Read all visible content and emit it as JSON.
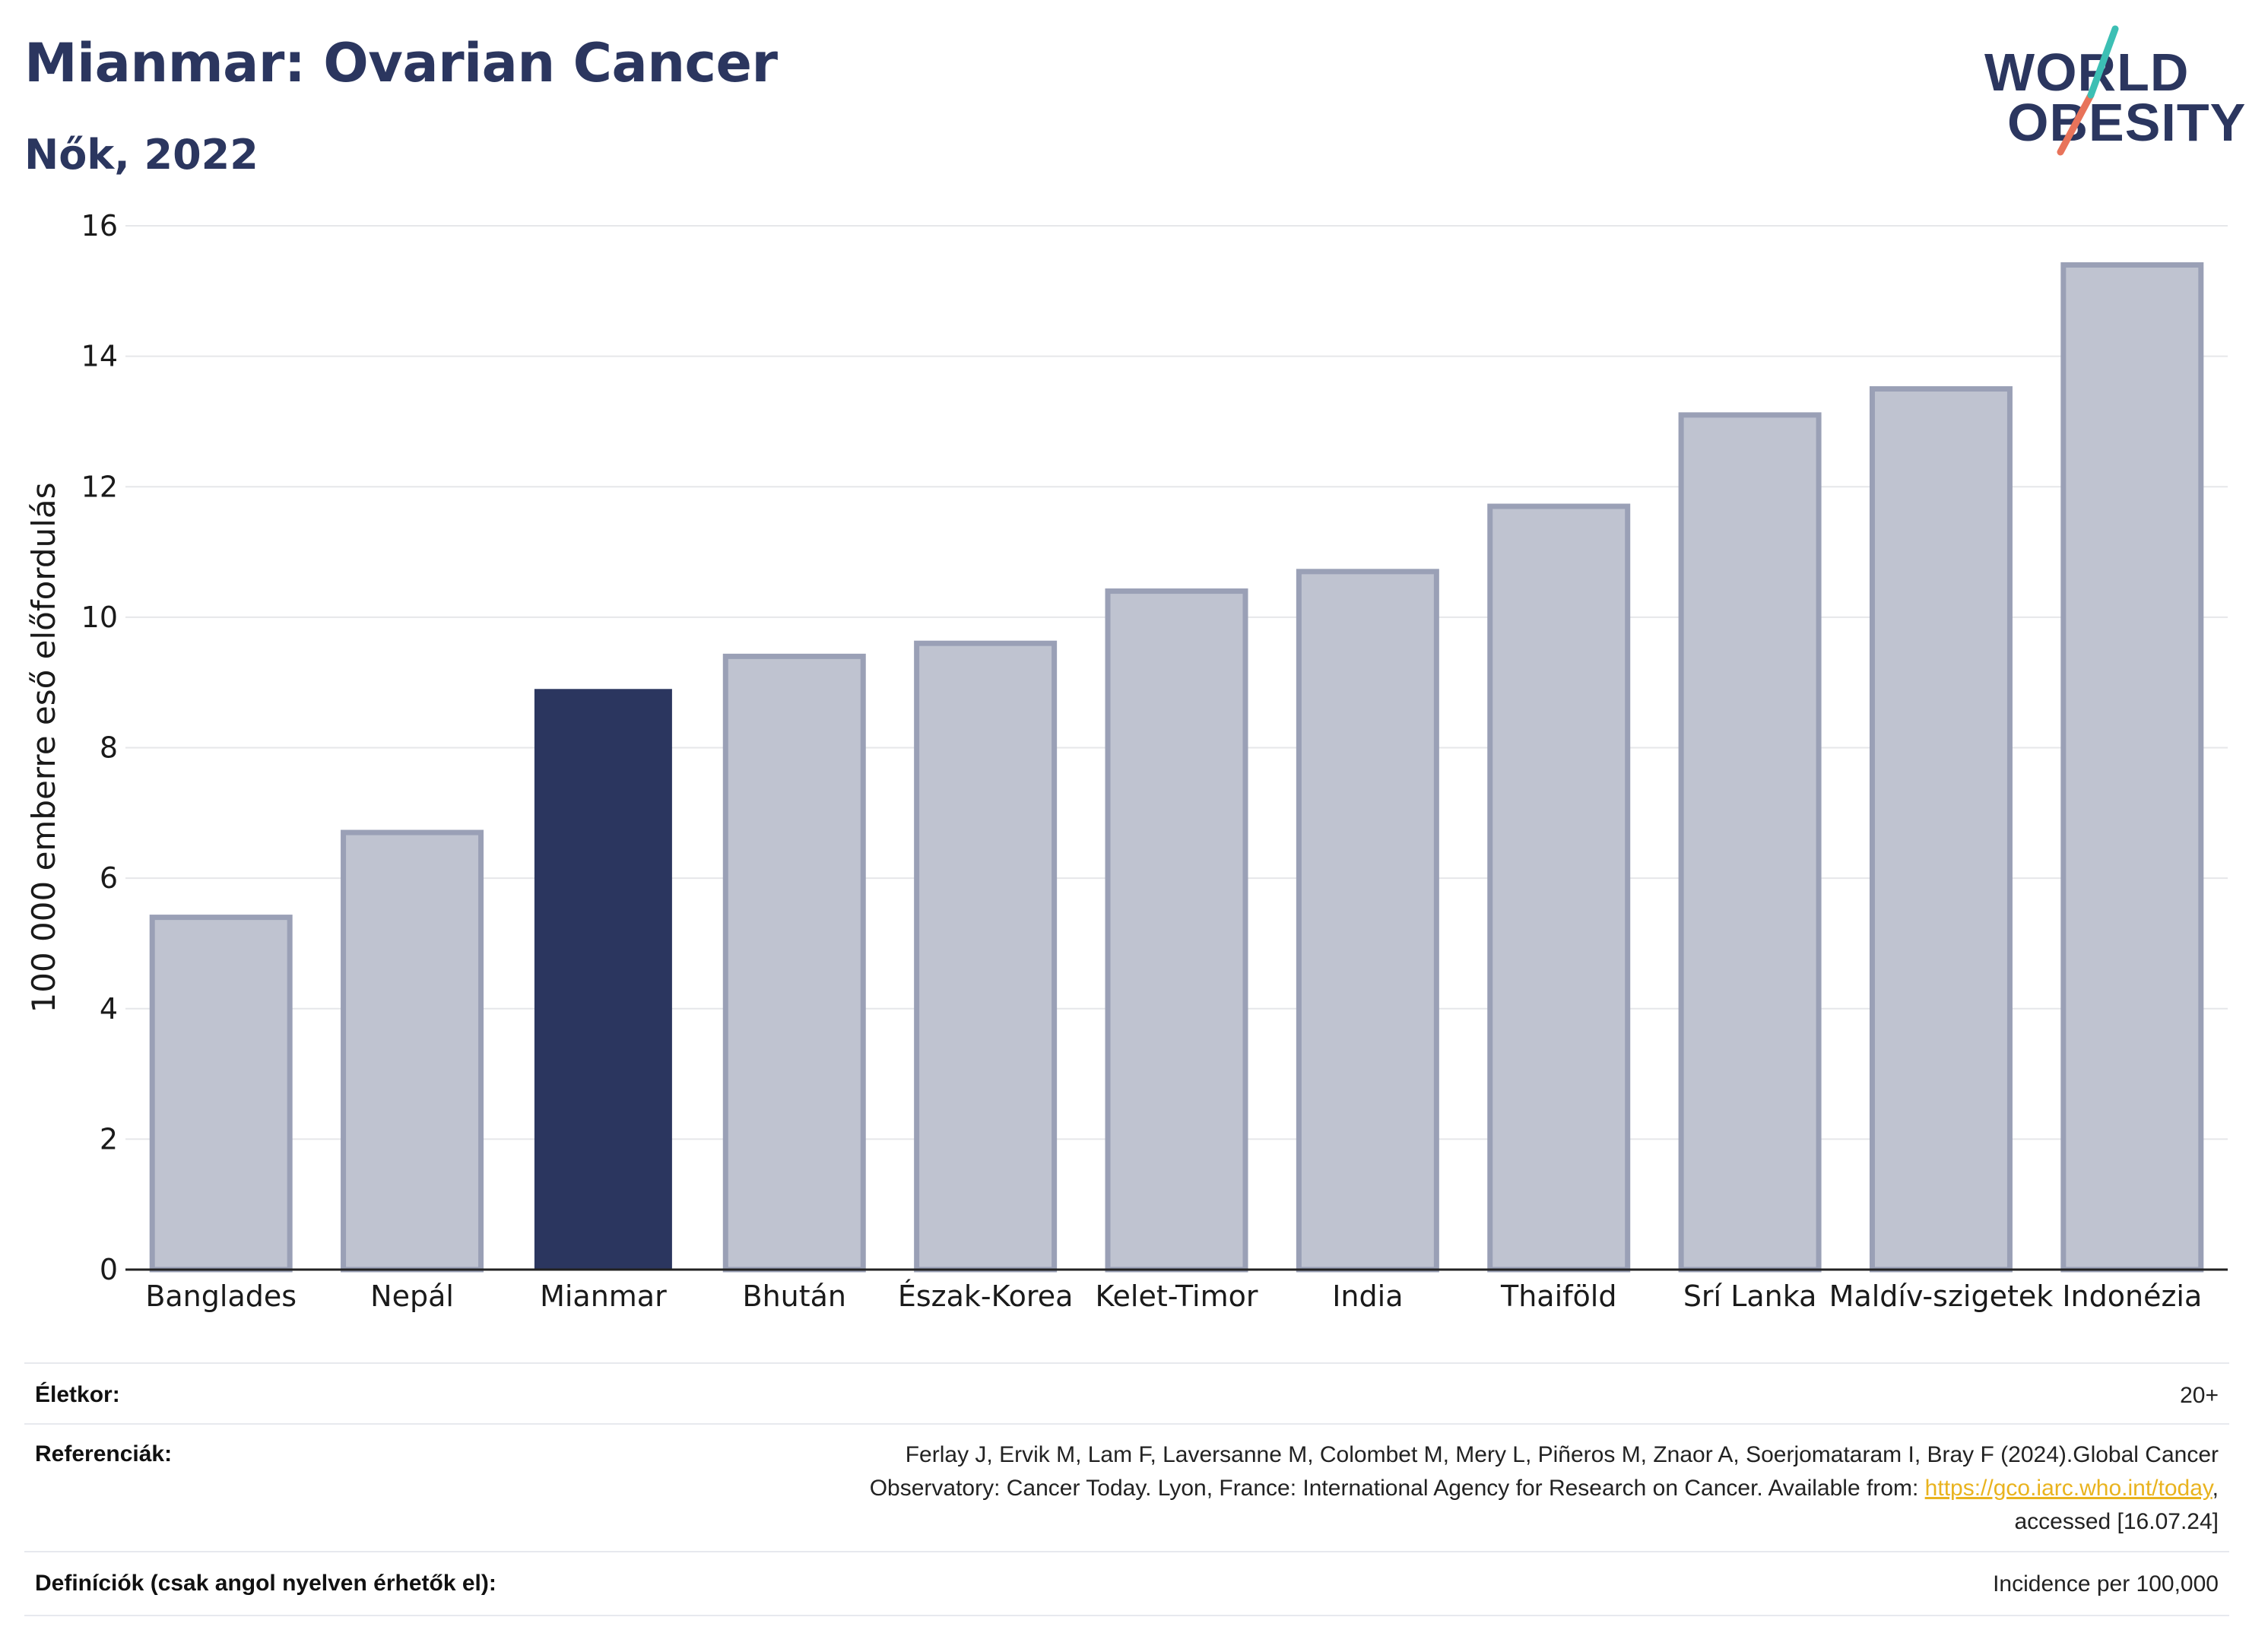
{
  "header": {
    "title": "Mianmar: Ovarian Cancer",
    "subtitle": "Nők, 2022"
  },
  "logo": {
    "line1": "WORLD",
    "line2": "OBESITY",
    "colors": {
      "text": "#2b365f",
      "slash_teal": "#3cbfb4",
      "slash_coral": "#e8735a"
    }
  },
  "chart_data": {
    "type": "bar",
    "categories": [
      "Banglades",
      "Nepál",
      "Mianmar",
      "Bhután",
      "Észak-Korea",
      "Kelet-Timor",
      "India",
      "Thaiföld",
      "Srí Lanka",
      "Maldív-szigetek",
      "Indonézia"
    ],
    "values": [
      5.4,
      6.7,
      8.9,
      9.4,
      9.6,
      10.4,
      10.7,
      11.7,
      13.1,
      13.5,
      15.4
    ],
    "highlight": "Mianmar",
    "ylabel": "100 000 emberre eső előfordulás",
    "xlabel": "",
    "ylim": [
      0,
      16
    ],
    "yticks": [
      0,
      2,
      4,
      6,
      8,
      10,
      12,
      14,
      16
    ],
    "grid": true,
    "colors": {
      "highlight": "#2b365f",
      "other_fill": "#bfc3d0",
      "other_edge": "#9aa0b6"
    }
  },
  "footer": {
    "age_label": "Életkor:",
    "age_value": "20+",
    "ref_label": "Referenciák:",
    "ref_line1": "Ferlay J, Ervik M, Lam F, Laversanne M, Colombet M, Mery L, Piñeros M, Znaor A, Soerjomataram I, Bray F (2024).Global Cancer",
    "ref_line2_pre": "Observatory: Cancer Today. Lyon, France: International Agency for Research on Cancer. Available from: ",
    "ref_link": "https://gco.iarc.who.int/today",
    "ref_line2_post": ",",
    "ref_line3": "accessed [16.07.24]",
    "def_label": "Definíciók (csak angol nyelven érhetők el):",
    "def_value": "Incidence per 100,000"
  }
}
